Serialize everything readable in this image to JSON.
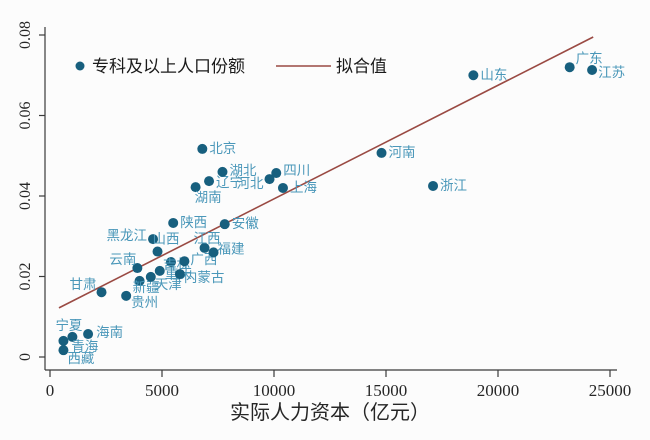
{
  "chart_data": {
    "type": "scatter",
    "title": "",
    "xlabel": "实际人力资本（亿元）",
    "ylabel": "",
    "xlim": [
      0,
      25000
    ],
    "ylim": [
      0,
      0.08
    ],
    "grid": "off",
    "legend_position": "top-inside",
    "legend": {
      "scatter_label": "专科及以上人口份额",
      "line_label": "拟合值"
    },
    "x_ticks": [
      {
        "v": 0,
        "label": "0"
      },
      {
        "v": 5000,
        "label": "5000"
      },
      {
        "v": 10000,
        "label": "10000"
      },
      {
        "v": 15000,
        "label": "15000"
      },
      {
        "v": 20000,
        "label": "20000"
      },
      {
        "v": 25000,
        "label": "25000"
      }
    ],
    "y_ticks": [
      {
        "v": 0,
        "label": "0"
      },
      {
        "v": 0.02,
        "label": "0.02"
      },
      {
        "v": 0.04,
        "label": "0.04"
      },
      {
        "v": 0.06,
        "label": "0.06"
      },
      {
        "v": 0.08,
        "label": "0.08"
      }
    ],
    "series": [
      {
        "name": "专科及以上人口份额",
        "type": "scatter",
        "points": [
          {
            "label": "西藏",
            "x": 600,
            "y": 0.0017,
            "lp": [
              4,
              13,
              "s"
            ]
          },
          {
            "label": "宁夏",
            "x": 600,
            "y": 0.004,
            "lp": [
              -8,
              -11,
              "s"
            ]
          },
          {
            "label": "青海",
            "x": 1000,
            "y": 0.005,
            "lp": [
              -1,
              14,
              "s"
            ]
          },
          {
            "label": "海南",
            "x": 1700,
            "y": 0.0057,
            "lp": [
              8,
              3,
              "s"
            ]
          },
          {
            "label": "甘肃",
            "x": 2300,
            "y": 0.0161,
            "lp": [
              -5,
              -3,
              "e"
            ]
          },
          {
            "label": "贵州",
            "x": 3400,
            "y": 0.0152,
            "lp": [
              5,
              11,
              "s"
            ]
          },
          {
            "label": "云南",
            "x": 3900,
            "y": 0.0221,
            "lp": [
              -1,
              -4,
              "e"
            ]
          },
          {
            "label": "新疆",
            "x": 4000,
            "y": 0.0189,
            "lp": [
              -7,
              11,
              "s"
            ]
          },
          {
            "label": "天津",
            "x": 4500,
            "y": 0.0199,
            "lp": [
              4,
              12,
              "s"
            ]
          },
          {
            "label": "黑龙江",
            "x": 4600,
            "y": 0.0293,
            "lp": [
              -6,
              1,
              "e"
            ]
          },
          {
            "label": "山西",
            "x": 4800,
            "y": 0.0262,
            "lp": [
              -5,
              -8,
              "s"
            ]
          },
          {
            "label": "重庆",
            "x": 4900,
            "y": 0.0214,
            "lp": [
              5,
              7,
              "s"
            ]
          },
          {
            "label": "吉林",
            "x": 5400,
            "y": 0.0236,
            "lp": [
              -8,
              7,
              "s"
            ]
          },
          {
            "label": "陕西",
            "x": 5500,
            "y": 0.0333,
            "lp": [
              7,
              4,
              "s"
            ]
          },
          {
            "label": "内蒙古",
            "x": 5800,
            "y": 0.0206,
            "lp": [
              4,
              8,
              "s"
            ]
          },
          {
            "label": "广西",
            "x": 6000,
            "y": 0.0238,
            "lp": [
              6,
              3,
              "s"
            ]
          },
          {
            "label": "湖南",
            "x": 6500,
            "y": 0.0422,
            "lp": [
              -1,
              15,
              "s"
            ]
          },
          {
            "label": "北京",
            "x": 6800,
            "y": 0.0517,
            "lp": [
              7,
              4,
              "s"
            ]
          },
          {
            "label": "江西",
            "x": 6900,
            "y": 0.0271,
            "lp": [
              -11,
              -5,
              "s"
            ]
          },
          {
            "label": "辽宁",
            "x": 7100,
            "y": 0.0437,
            "lp": [
              7,
              6,
              "s"
            ]
          },
          {
            "label": "福建",
            "x": 7300,
            "y": 0.026,
            "lp": [
              4,
              1,
              "s"
            ]
          },
          {
            "label": "湖北",
            "x": 7700,
            "y": 0.046,
            "lp": [
              7,
              3,
              "s"
            ]
          },
          {
            "label": "安徽",
            "x": 7800,
            "y": 0.033,
            "lp": [
              7,
              4,
              "s"
            ]
          },
          {
            "label": "河北",
            "x": 9800,
            "y": 0.0442,
            "lp": [
              -6,
              9,
              "e"
            ]
          },
          {
            "label": "四川",
            "x": 10100,
            "y": 0.0457,
            "lp": [
              7,
              2,
              "s"
            ]
          },
          {
            "label": "上海",
            "x": 10400,
            "y": 0.042,
            "lp": [
              7,
              4,
              "s"
            ]
          },
          {
            "label": "河南",
            "x": 14800,
            "y": 0.0507,
            "lp": [
              7,
              4,
              "s"
            ]
          },
          {
            "label": "浙江",
            "x": 17100,
            "y": 0.0425,
            "lp": [
              7,
              4,
              "s"
            ]
          },
          {
            "label": "山东",
            "x": 18900,
            "y": 0.07,
            "lp": [
              7,
              4,
              "s"
            ]
          },
          {
            "label": "广东",
            "x": 23200,
            "y": 0.072,
            "lp": [
              6,
              -4,
              "s"
            ]
          },
          {
            "label": "江苏",
            "x": 24200,
            "y": 0.0713,
            "lp": [
              6,
              7,
              "s"
            ]
          }
        ]
      },
      {
        "name": "拟合值",
        "type": "line",
        "x1": 400,
        "y1": 0.0122,
        "x2": 24250,
        "y2": 0.0795
      }
    ],
    "colors": {
      "point": "#175f7e",
      "point_label": "#4a97b9",
      "fit_line": "#9a4a43",
      "axis": "#3a3a3a",
      "tick_label": "#262626",
      "legend_text": "#1a1a1a"
    }
  }
}
